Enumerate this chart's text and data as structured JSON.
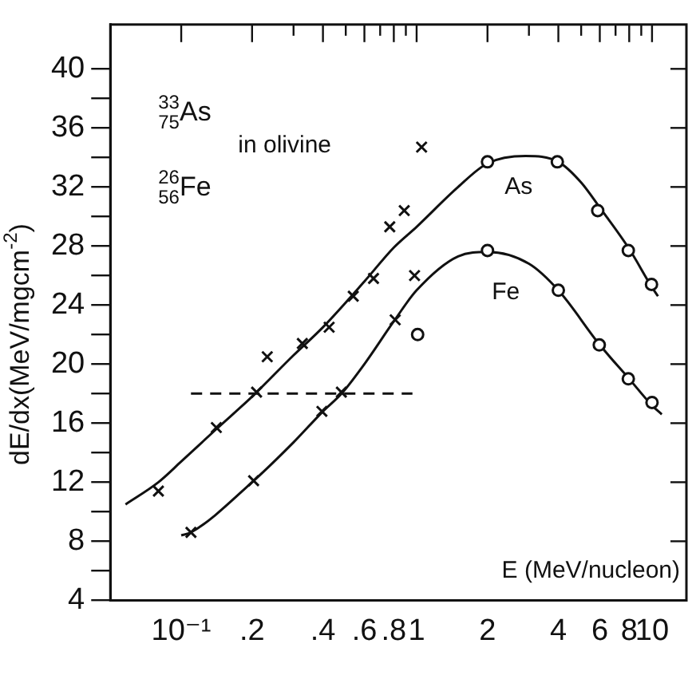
{
  "chart_data": {
    "type": "scatter",
    "xlabel": "E (MeV/nucleon)",
    "ylabel": "dE/dx(MeV/mgcm$^{-2}$)",
    "log": "x",
    "grid": false,
    "legend": false,
    "xlim": [
      0.05,
      14
    ],
    "ylim": [
      4,
      43
    ],
    "xticks": [
      {
        "value": 0.1,
        "label": "10⁻¹"
      },
      {
        "value": 0.2,
        "label": ".2"
      },
      {
        "value": 0.3,
        "label": null
      },
      {
        "value": 0.4,
        "label": ".4"
      },
      {
        "value": 0.5,
        "label": null
      },
      {
        "value": 0.6,
        "label": ".6"
      },
      {
        "value": 0.7,
        "label": null
      },
      {
        "value": 0.8,
        "label": ".8"
      },
      {
        "value": 0.9,
        "label": null
      },
      1,
      2,
      {
        "value": 3,
        "label": null
      },
      4,
      {
        "value": 5,
        "label": null
      },
      6,
      {
        "value": 7,
        "label": null
      },
      8,
      {
        "value": 9,
        "label": null
      },
      10
    ],
    "yticks": [
      4,
      {
        "value": 6,
        "label": null
      },
      8,
      {
        "value": 10,
        "label": null
      },
      12,
      {
        "value": 14,
        "label": null
      },
      16,
      {
        "value": 18,
        "label": null
      },
      20,
      {
        "value": 22,
        "label": null
      },
      24,
      {
        "value": 26,
        "label": null
      },
      28,
      {
        "value": 30,
        "label": null
      },
      32,
      {
        "value": 34,
        "label": null
      },
      36,
      {
        "value": 38,
        "label": null
      },
      40
    ],
    "series": [
      {
        "marker": "cross",
        "color": "#111111",
        "x": [
          0.08,
          0.141,
          0.209,
          0.232,
          0.327,
          0.425,
          0.538,
          0.656,
          0.769,
          0.886,
          1.05
        ],
        "values": [
          11.4,
          15.7,
          18.1,
          20.5,
          21.4,
          22.5,
          24.6,
          25.8,
          29.3,
          30.4,
          34.7
        ]
      },
      {
        "marker": "cross",
        "color": "#111111",
        "x": [
          0.11,
          0.203,
          0.396,
          0.479,
          0.811,
          0.98
        ],
        "values": [
          8.6,
          12.1,
          16.8,
          18.1,
          23.0,
          26.0
        ]
      },
      {
        "marker": "circle",
        "color": "#111111",
        "x": [
          2.0,
          3.96,
          5.88,
          7.93,
          9.95
        ],
        "values": [
          33.7,
          33.7,
          30.4,
          27.7,
          25.4
        ]
      },
      {
        "marker": "circle",
        "color": "#111111",
        "x": [
          1.01,
          2.0,
          4.0,
          5.97,
          7.93,
          10.0
        ],
        "values": [
          22.0,
          27.7,
          25.0,
          21.3,
          19.0,
          17.4
        ]
      },
      {
        "type": "line",
        "line_style": "solid",
        "color": "#111111",
        "x": [
          0.058,
          0.08,
          0.1,
          0.141,
          0.2,
          0.3,
          0.4,
          0.6,
          0.8,
          1,
          1.5,
          2,
          2.9,
          4,
          5,
          6,
          8,
          10,
          10.6
        ],
        "values": [
          10.5,
          12.0,
          13.4,
          15.6,
          17.8,
          20.6,
          22.5,
          25.6,
          27.9,
          29.3,
          32.0,
          33.6,
          34.1,
          33.7,
          32.3,
          30.6,
          27.8,
          25.2,
          24.6
        ]
      },
      {
        "type": "line",
        "line_style": "solid",
        "color": "#111111",
        "x": [
          0.1,
          0.11,
          0.2,
          0.3,
          0.4,
          0.48,
          0.6,
          0.8,
          1,
          1.5,
          2,
          3,
          4,
          6,
          8,
          10,
          11
        ],
        "values": [
          8.4,
          8.6,
          12.0,
          14.7,
          16.8,
          18.0,
          20.0,
          22.9,
          25.0,
          27.3,
          27.6,
          26.8,
          25.0,
          21.3,
          19.0,
          17.2,
          16.6
        ]
      },
      {
        "type": "line",
        "line_style": "dashed",
        "color": "#111111",
        "x": [
          0.11,
          0.96
        ],
        "values": [
          18,
          18
        ]
      }
    ],
    "annotations": [
      "$^{33}$$_{75}$As",
      "in olivine",
      "$^{26}$$_{56}$Fe",
      "As",
      "Fe"
    ]
  }
}
